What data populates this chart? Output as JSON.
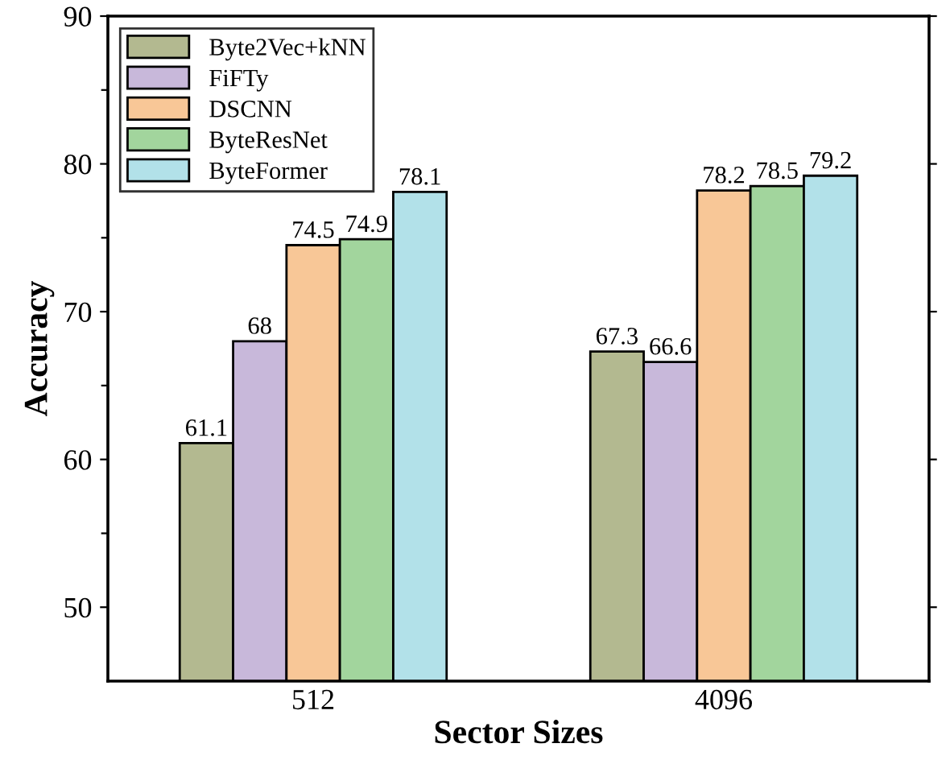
{
  "chart_data": {
    "type": "bar",
    "xlabel": "Sector Sizes",
    "ylabel": "Accuracy",
    "categories": [
      "512",
      "4096"
    ],
    "series": [
      {
        "name": "Byte2Vec+kNN",
        "color": "#b3b990",
        "values": [
          61.1,
          67.3
        ]
      },
      {
        "name": "FiFTy",
        "color": "#c8b8da",
        "values": [
          68,
          66.6
        ]
      },
      {
        "name": "DSCNN",
        "color": "#f8c797",
        "values": [
          74.5,
          78.2
        ]
      },
      {
        "name": "ByteResNet",
        "color": "#a2d59d",
        "values": [
          74.9,
          78.5
        ]
      },
      {
        "name": "ByteFormer",
        "color": "#b2e1e9",
        "values": [
          78.1,
          79.2
        ]
      }
    ],
    "ylim": [
      45,
      90
    ],
    "yticks": [
      50,
      {
        "value": 55,
        "label": null
      },
      60,
      {
        "value": 65,
        "label": null
      },
      70,
      {
        "value": 75,
        "label": null
      },
      80,
      {
        "value": 85,
        "label": null
      },
      90
    ],
    "data_labels": true,
    "legend": "top left",
    "grid": false
  }
}
